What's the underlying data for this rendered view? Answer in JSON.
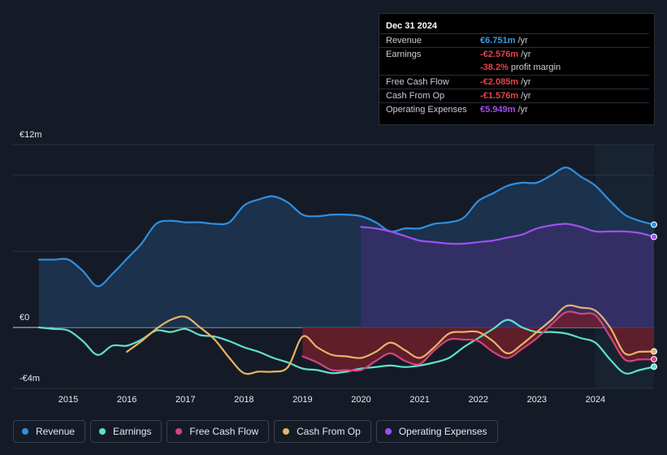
{
  "tooltip": {
    "date": "Dec 31 2024",
    "rows": [
      {
        "label": "Revenue",
        "value": "€6.751m",
        "unit": "/yr",
        "color": "#3a9ee8"
      },
      {
        "label": "Earnings",
        "value": "-€2.576m",
        "unit": "/yr",
        "color": "#e8424b"
      },
      {
        "label": "",
        "value": "-38.2%",
        "unit": "profit margin",
        "color": "#e8424b"
      },
      {
        "label": "Free Cash Flow",
        "value": "-€2.085m",
        "unit": "/yr",
        "color": "#e8424b"
      },
      {
        "label": "Cash From Op",
        "value": "-€1.576m",
        "unit": "/yr",
        "color": "#e8424b"
      },
      {
        "label": "Operating Expenses",
        "value": "€5.949m",
        "unit": "/yr",
        "color": "#a14ff0"
      }
    ]
  },
  "legend": [
    {
      "label": "Revenue",
      "color": "#2e8fe0"
    },
    {
      "label": "Earnings",
      "color": "#5fe0cc"
    },
    {
      "label": "Free Cash Flow",
      "color": "#d2447e"
    },
    {
      "label": "Cash From Op",
      "color": "#e9b366"
    },
    {
      "label": "Operating Expenses",
      "color": "#a14ff0"
    }
  ],
  "chart_data": {
    "type": "area",
    "ylabels": {
      "top": "€12m",
      "zero": "€0",
      "bottom": "-€4m"
    },
    "ylim": [
      -4,
      12
    ],
    "xlim": [
      2014.5,
      2025.0
    ],
    "forecast_start": 2024.0,
    "xticks": [
      2015,
      2016,
      2017,
      2018,
      2019,
      2020,
      2021,
      2022,
      2023,
      2024
    ],
    "xtick_labels": [
      "2015",
      "2016",
      "2017",
      "2018",
      "2019",
      "2020",
      "2021",
      "2022",
      "2023",
      "2024"
    ],
    "series": [
      {
        "name": "Revenue",
        "color": "#2e8fe0",
        "fill": "#1e3a5a",
        "points": [
          [
            2014.5,
            4.45
          ],
          [
            2014.75,
            4.45
          ],
          [
            2015.0,
            4.45
          ],
          [
            2015.25,
            3.7
          ],
          [
            2015.5,
            2.7
          ],
          [
            2015.75,
            3.5
          ],
          [
            2016.0,
            4.5
          ],
          [
            2016.25,
            5.5
          ],
          [
            2016.5,
            6.8
          ],
          [
            2016.75,
            7.0
          ],
          [
            2017.0,
            6.9
          ],
          [
            2017.25,
            6.9
          ],
          [
            2017.5,
            6.8
          ],
          [
            2017.75,
            6.9
          ],
          [
            2018.0,
            8.0
          ],
          [
            2018.25,
            8.4
          ],
          [
            2018.5,
            8.6
          ],
          [
            2018.75,
            8.2
          ],
          [
            2019.0,
            7.4
          ],
          [
            2019.25,
            7.3
          ],
          [
            2019.5,
            7.4
          ],
          [
            2019.75,
            7.4
          ],
          [
            2020.0,
            7.3
          ],
          [
            2020.25,
            6.9
          ],
          [
            2020.5,
            6.3
          ],
          [
            2020.75,
            6.5
          ],
          [
            2021.0,
            6.5
          ],
          [
            2021.25,
            6.8
          ],
          [
            2021.5,
            6.9
          ],
          [
            2021.75,
            7.2
          ],
          [
            2022.0,
            8.3
          ],
          [
            2022.25,
            8.8
          ],
          [
            2022.5,
            9.3
          ],
          [
            2022.75,
            9.5
          ],
          [
            2023.0,
            9.5
          ],
          [
            2023.25,
            10.0
          ],
          [
            2023.5,
            10.5
          ],
          [
            2023.75,
            9.9
          ],
          [
            2024.0,
            9.3
          ],
          [
            2024.25,
            8.3
          ],
          [
            2024.5,
            7.4
          ],
          [
            2024.75,
            7.0
          ],
          [
            2025.0,
            6.75
          ]
        ]
      },
      {
        "name": "Operating Expenses",
        "color": "#a14ff0",
        "fill": "#3b2f6e",
        "points": [
          [
            2020.0,
            6.6
          ],
          [
            2020.25,
            6.5
          ],
          [
            2020.5,
            6.3
          ],
          [
            2020.75,
            6.0
          ],
          [
            2021.0,
            5.7
          ],
          [
            2021.25,
            5.6
          ],
          [
            2021.5,
            5.5
          ],
          [
            2021.75,
            5.5
          ],
          [
            2022.0,
            5.6
          ],
          [
            2022.25,
            5.7
          ],
          [
            2022.5,
            5.9
          ],
          [
            2022.75,
            6.1
          ],
          [
            2023.0,
            6.5
          ],
          [
            2023.25,
            6.7
          ],
          [
            2023.5,
            6.8
          ],
          [
            2023.75,
            6.6
          ],
          [
            2024.0,
            6.3
          ],
          [
            2024.25,
            6.3
          ],
          [
            2024.5,
            6.3
          ],
          [
            2024.75,
            6.2
          ],
          [
            2025.0,
            5.95
          ]
        ]
      },
      {
        "name": "Earnings",
        "color": "#5fe0cc",
        "fill": "none",
        "points": [
          [
            2014.5,
            0.0
          ],
          [
            2014.75,
            -0.1
          ],
          [
            2015.0,
            -0.2
          ],
          [
            2015.25,
            -0.9
          ],
          [
            2015.5,
            -1.8
          ],
          [
            2015.75,
            -1.2
          ],
          [
            2016.0,
            -1.2
          ],
          [
            2016.25,
            -0.8
          ],
          [
            2016.5,
            -0.2
          ],
          [
            2016.75,
            -0.3
          ],
          [
            2017.0,
            -0.1
          ],
          [
            2017.25,
            -0.5
          ],
          [
            2017.5,
            -0.6
          ],
          [
            2017.75,
            -0.9
          ],
          [
            2018.0,
            -1.3
          ],
          [
            2018.25,
            -1.6
          ],
          [
            2018.5,
            -2.0
          ],
          [
            2018.75,
            -2.3
          ],
          [
            2019.0,
            -2.7
          ],
          [
            2019.25,
            -2.8
          ],
          [
            2019.5,
            -3.0
          ],
          [
            2019.75,
            -2.9
          ],
          [
            2020.0,
            -2.7
          ],
          [
            2020.25,
            -2.6
          ],
          [
            2020.5,
            -2.5
          ],
          [
            2020.75,
            -2.6
          ],
          [
            2021.0,
            -2.5
          ],
          [
            2021.25,
            -2.3
          ],
          [
            2021.5,
            -2.0
          ],
          [
            2021.75,
            -1.3
          ],
          [
            2022.0,
            -0.7
          ],
          [
            2022.25,
            -0.1
          ],
          [
            2022.5,
            0.5
          ],
          [
            2022.75,
            0.0
          ],
          [
            2023.0,
            -0.3
          ],
          [
            2023.25,
            -0.3
          ],
          [
            2023.5,
            -0.4
          ],
          [
            2023.75,
            -0.7
          ],
          [
            2024.0,
            -1.0
          ],
          [
            2024.25,
            -2.1
          ],
          [
            2024.5,
            -3.0
          ],
          [
            2024.75,
            -2.8
          ],
          [
            2025.0,
            -2.576
          ]
        ]
      },
      {
        "name": "Free Cash Flow",
        "color": "#d2447e",
        "fill": "#6b1f2c",
        "points": [
          [
            2019.0,
            -1.9
          ],
          [
            2019.25,
            -2.3
          ],
          [
            2019.5,
            -2.8
          ],
          [
            2019.75,
            -2.8
          ],
          [
            2020.0,
            -2.8
          ],
          [
            2020.25,
            -2.2
          ],
          [
            2020.5,
            -1.7
          ],
          [
            2020.75,
            -2.2
          ],
          [
            2021.0,
            -2.4
          ],
          [
            2021.25,
            -1.5
          ],
          [
            2021.5,
            -0.8
          ],
          [
            2021.75,
            -0.8
          ],
          [
            2022.0,
            -0.9
          ],
          [
            2022.25,
            -1.6
          ],
          [
            2022.5,
            -2.0
          ],
          [
            2022.75,
            -1.4
          ],
          [
            2023.0,
            -0.7
          ],
          [
            2023.25,
            0.2
          ],
          [
            2023.5,
            1.0
          ],
          [
            2023.75,
            0.9
          ],
          [
            2024.0,
            0.8
          ],
          [
            2024.25,
            -0.6
          ],
          [
            2024.5,
            -2.1
          ],
          [
            2024.75,
            -2.1
          ],
          [
            2025.0,
            -2.085
          ]
        ]
      },
      {
        "name": "Cash From Op",
        "color": "#e9b366",
        "fill": "none",
        "points": [
          [
            2016.0,
            -1.6
          ],
          [
            2016.25,
            -0.9
          ],
          [
            2016.5,
            -0.1
          ],
          [
            2016.75,
            0.5
          ],
          [
            2017.0,
            0.7
          ],
          [
            2017.25,
            0.0
          ],
          [
            2017.5,
            -0.8
          ],
          [
            2017.75,
            -2.0
          ],
          [
            2018.0,
            -3.0
          ],
          [
            2018.25,
            -2.9
          ],
          [
            2018.5,
            -2.9
          ],
          [
            2018.75,
            -2.6
          ],
          [
            2019.0,
            -0.6
          ],
          [
            2019.25,
            -1.3
          ],
          [
            2019.5,
            -1.8
          ],
          [
            2019.75,
            -1.9
          ],
          [
            2020.0,
            -2.0
          ],
          [
            2020.25,
            -1.6
          ],
          [
            2020.5,
            -1.0
          ],
          [
            2020.75,
            -1.5
          ],
          [
            2021.0,
            -2.0
          ],
          [
            2021.25,
            -1.3
          ],
          [
            2021.5,
            -0.4
          ],
          [
            2021.75,
            -0.3
          ],
          [
            2022.0,
            -0.3
          ],
          [
            2022.25,
            -0.9
          ],
          [
            2022.5,
            -1.7
          ],
          [
            2022.75,
            -1.1
          ],
          [
            2023.0,
            -0.3
          ],
          [
            2023.25,
            0.5
          ],
          [
            2023.5,
            1.4
          ],
          [
            2023.75,
            1.3
          ],
          [
            2024.0,
            1.1
          ],
          [
            2024.25,
            0.0
          ],
          [
            2024.5,
            -1.7
          ],
          [
            2024.75,
            -1.6
          ],
          [
            2025.0,
            -1.576
          ]
        ]
      }
    ]
  }
}
